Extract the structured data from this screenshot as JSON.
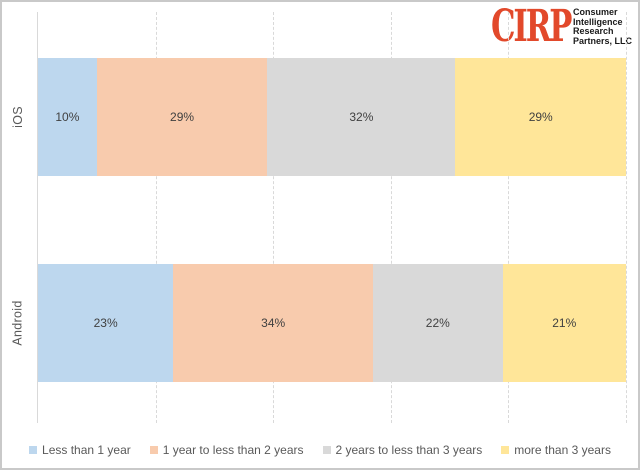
{
  "logo": {
    "acronym": "CIRP",
    "org_lines": [
      "Consumer",
      "Intelligence",
      "Research",
      "Partners, LLC"
    ],
    "accent_color": "#E2492B"
  },
  "chart_data": {
    "type": "bar",
    "variant": "horizontal-stacked-100pct",
    "categories": [
      "iOS",
      "Android"
    ],
    "series": [
      {
        "name": "Less than 1 year",
        "color": "#BDD7EE",
        "values": [
          10,
          23
        ]
      },
      {
        "name": "1 year to less than 2 years",
        "color": "#F8CBAD",
        "values": [
          29,
          34
        ]
      },
      {
        "name": "2 years to less than 3 years",
        "color": "#D9D9D9",
        "values": [
          32,
          22
        ]
      },
      {
        "name": "more than 3 years",
        "color": "#FFE699",
        "values": [
          29,
          21
        ]
      }
    ],
    "data_label_format": "{value}%",
    "xlim": [
      0,
      100
    ],
    "gridline_interval_pct": 20,
    "gridline_style": "dashed",
    "grid": true,
    "legend_position": "bottom",
    "data_label_color": "#404040",
    "axis_label_color": "#595959",
    "gridline_color": "#d9d9d9"
  }
}
